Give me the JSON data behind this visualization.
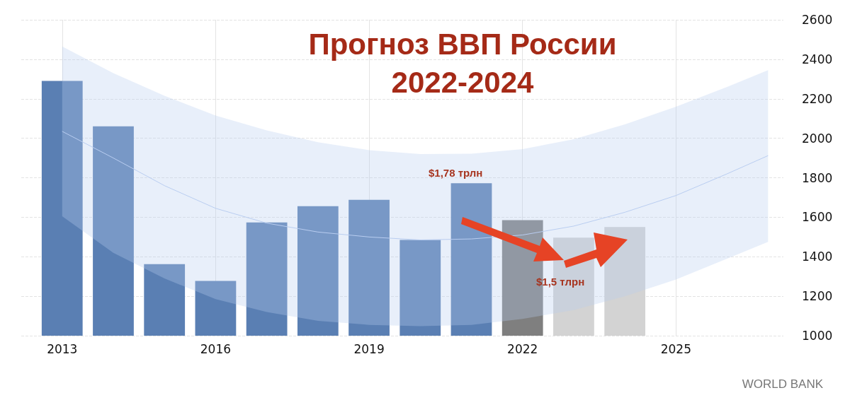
{
  "chart_data": {
    "type": "bar",
    "title": "Прогноз ВВП России 2022-2024",
    "series": [
      {
        "x": [
          2013,
          2014,
          2015,
          2016,
          2017,
          2018,
          2019,
          2020,
          2021,
          2022,
          2023,
          2024
        ],
        "values": [
          2290,
          2060,
          1362,
          1277,
          1574,
          1656,
          1688,
          1485,
          1772,
          1585,
          1497,
          1550
        ],
        "colors": [
          "#5a7fb3",
          "#5a7fb3",
          "#5a7fb3",
          "#5a7fb3",
          "#5a7fb3",
          "#5a7fb3",
          "#5a7fb3",
          "#5a7fb3",
          "#5a7fb3",
          "#7f7f7f",
          "#d3d3d3",
          "#d3d3d3"
        ]
      },
      {
        "type": "line",
        "color": "#b9cdf0",
        "x": [
          2013,
          2014,
          2015,
          2016,
          2017,
          2018,
          2019,
          2020,
          2021,
          2022,
          2023,
          2024,
          2025,
          2026,
          2026.8
        ],
        "values": [
          2035,
          1900,
          1760,
          1645,
          1570,
          1525,
          1500,
          1485,
          1490,
          1510,
          1555,
          1625,
          1710,
          1820,
          1912
        ],
        "lower": [
          1605,
          1420,
          1290,
          1185,
          1120,
          1075,
          1055,
          1048,
          1055,
          1085,
          1130,
          1200,
          1285,
          1390,
          1475
        ],
        "upper": [
          2465,
          2330,
          2215,
          2115,
          2040,
          1980,
          1940,
          1920,
          1922,
          1945,
          1995,
          2070,
          2160,
          2260,
          2345
        ]
      }
    ],
    "xlim": [
      2012.2,
      2027.1
    ],
    "xticks": [
      2013,
      2016,
      2019,
      2022,
      2025
    ],
    "ylim": [
      1000,
      2600
    ],
    "yticks": [
      1000,
      1200,
      1400,
      1600,
      1800,
      2000,
      2200,
      2400,
      2600
    ],
    "grid": true,
    "marker": "none",
    "annotations": [
      "$1,78 трлн",
      "$1,5 тлрн",
      "WORLD BANK"
    ]
  }
}
